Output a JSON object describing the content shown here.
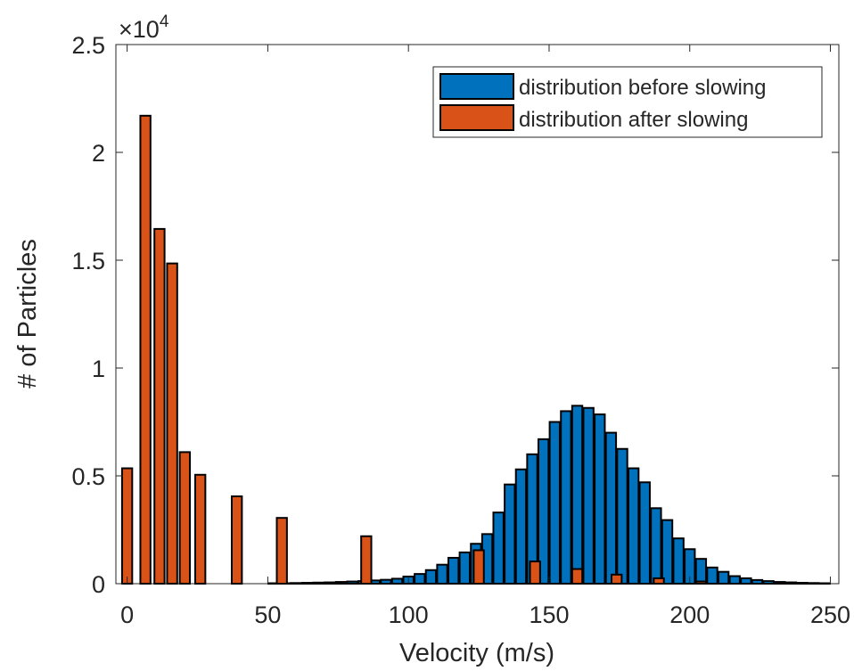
{
  "chart_data": {
    "type": "bar",
    "xlabel": "Velocity (m/s)",
    "ylabel": "# of Particles",
    "exponent_label": "×10",
    "exponent_power": "4",
    "xlim": [
      -4,
      253
    ],
    "ylim": [
      0,
      2.5
    ],
    "x_ticks": [
      0,
      50,
      100,
      150,
      200,
      250
    ],
    "y_ticks": [
      0,
      0.5,
      1,
      1.5,
      2,
      2.5
    ],
    "y_tick_labels": [
      "0",
      "0.5",
      "1",
      "1.5",
      "2",
      "2.5"
    ],
    "grid": false,
    "legend": "top-right",
    "series": [
      {
        "name": "distribution before slowing",
        "color": "#0072BD",
        "bar_width": 3.6,
        "x": [
          52,
          56,
          60,
          64,
          68,
          72,
          76,
          80,
          84,
          88,
          92,
          96,
          100,
          104,
          108,
          112,
          116,
          120,
          124,
          128,
          132,
          136,
          140,
          144,
          148,
          152,
          156,
          160,
          164,
          168,
          172,
          176,
          180,
          184,
          188,
          192,
          196,
          200,
          204,
          208,
          212,
          216,
          220,
          224,
          228,
          232,
          236,
          240,
          244,
          248
        ],
        "values": [
          0.002,
          0.002,
          0.003,
          0.004,
          0.005,
          0.006,
          0.008,
          0.01,
          0.012,
          0.015,
          0.018,
          0.023,
          0.033,
          0.045,
          0.063,
          0.088,
          0.12,
          0.145,
          0.185,
          0.23,
          0.33,
          0.46,
          0.53,
          0.6,
          0.67,
          0.75,
          0.8,
          0.825,
          0.815,
          0.785,
          0.7,
          0.625,
          0.535,
          0.47,
          0.35,
          0.295,
          0.21,
          0.16,
          0.115,
          0.075,
          0.055,
          0.035,
          0.025,
          0.017,
          0.012,
          0.008,
          0.006,
          0.004,
          0.003,
          0.002
        ]
      },
      {
        "name": "distribution after slowing",
        "color": "#D95319",
        "bar_width": 3.6,
        "x": [
          0,
          6.5,
          11.5,
          16,
          20.5,
          26,
          39,
          55,
          85,
          125,
          145,
          160,
          174,
          189,
          204
        ],
        "values": [
          0.535,
          2.17,
          1.645,
          1.485,
          0.61,
          0.505,
          0.405,
          0.305,
          0.22,
          0.155,
          0.103,
          0.068,
          0.042,
          0.025,
          0.01
        ]
      }
    ]
  }
}
